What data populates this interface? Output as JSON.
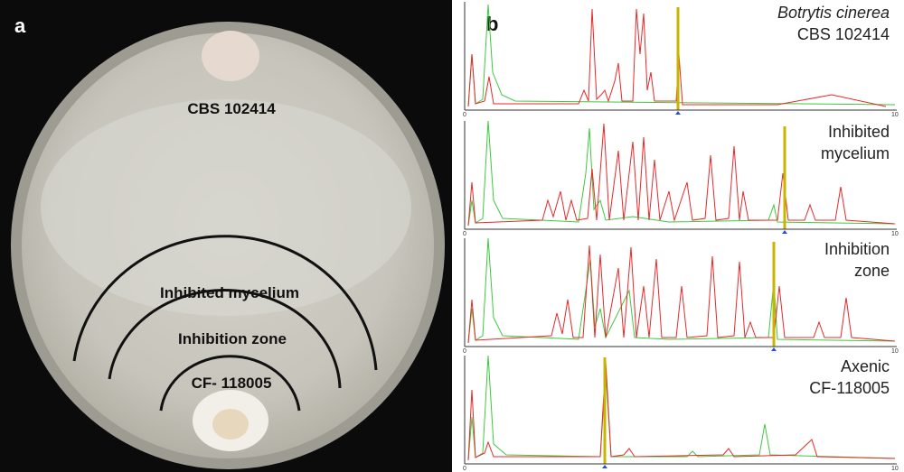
{
  "panel_a": {
    "label": "a",
    "texts": [
      "CBS 102414",
      "Inhibited mycelium",
      "Inhibition zone",
      "CF- 118005"
    ]
  },
  "panel_b": {
    "label": "b",
    "traces": [
      {
        "title": [
          "Botrytis cinerea",
          "CBS 102414"
        ],
        "axis": [
          0,
          10
        ]
      },
      {
        "title": [
          "Inhibited",
          "mycelium"
        ],
        "axis": [
          0,
          10
        ]
      },
      {
        "title": [
          "Inhibition",
          "zone"
        ],
        "axis": [
          0,
          10
        ]
      },
      {
        "title": [
          "Axenic",
          "CF-118005"
        ],
        "axis": [
          0,
          10
        ]
      }
    ]
  }
}
